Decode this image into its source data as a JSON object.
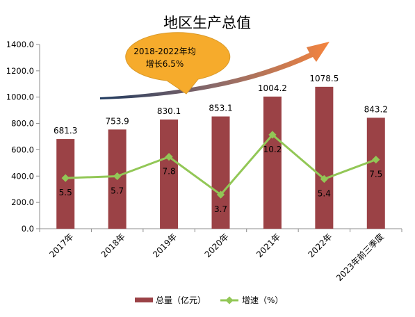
{
  "chart_data": {
    "type": "bar",
    "title": "地区生产总值",
    "categories": [
      "2017年",
      "2018年",
      "2019年",
      "2020年",
      "2021年",
      "2022年",
      "2023年前三季度"
    ],
    "series": [
      {
        "name": "总量（亿元）",
        "type": "bar",
        "axis": "left",
        "color": "#9b4246",
        "values": [
          681.3,
          753.9,
          830.1,
          853.1,
          1004.2,
          1078.5,
          843.2
        ],
        "labels": [
          "681.3",
          "753.9",
          "830.1",
          "853.1",
          "1004.2",
          "1078.5",
          "843.2"
        ]
      },
      {
        "name": "增速（%）",
        "type": "line",
        "axis": "right",
        "color": "#92c756",
        "values": [
          5.5,
          5.7,
          7.8,
          3.7,
          10.2,
          5.4,
          7.5
        ],
        "labels": [
          "5.5",
          "5.7",
          "7.8",
          "3.7",
          "10.2",
          "5.4",
          "7.5"
        ]
      }
    ],
    "y_left": {
      "min": 0,
      "max": 1400,
      "step": 200,
      "tick_labels": [
        "0.0",
        "200.0",
        "400.0",
        "600.0",
        "800.0",
        "1000.0",
        "1200.0",
        "1400.0"
      ]
    },
    "y_right_hidden": {
      "min": 0,
      "max": 20
    },
    "annotation": "2018-2022年均增长6.5%",
    "annotation_lines": [
      "2018-2022年均",
      "增长6.5%"
    ],
    "annotation_color": "#f6ab2c",
    "arrow_colors": [
      "#1f3a5f",
      "#f5843e"
    ],
    "grid": false,
    "legend_position": "bottom"
  }
}
